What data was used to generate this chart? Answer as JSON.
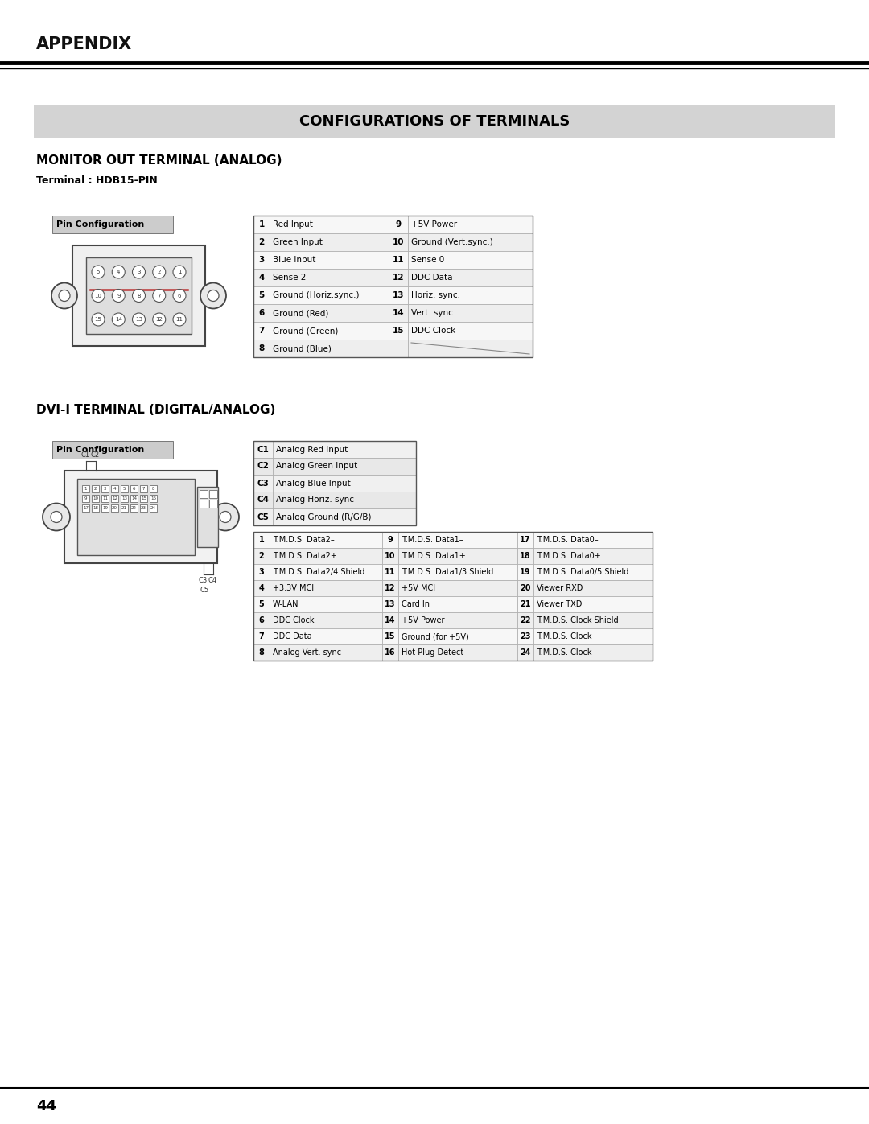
{
  "page_title": "APPENDIX",
  "section_title": "CONFIGURATIONS OF TERMINALS",
  "monitor_title": "MONITOR OUT TERMINAL (ANALOG)",
  "monitor_subtitle": "Terminal : HDB15-PIN",
  "dvi_title": "DVI-I TERMINAL (DIGITAL/ANALOG)",
  "pin_config_label": "Pin Configuration",
  "monitor_table_col1": [
    [
      "1",
      "Red Input"
    ],
    [
      "2",
      "Green Input"
    ],
    [
      "3",
      "Blue Input"
    ],
    [
      "4",
      "Sense 2"
    ],
    [
      "5",
      "Ground (Horiz.sync.)"
    ],
    [
      "6",
      "Ground (Red)"
    ],
    [
      "7",
      "Ground (Green)"
    ],
    [
      "8",
      "Ground (Blue)"
    ]
  ],
  "monitor_table_col2": [
    [
      "9",
      "+5V Power"
    ],
    [
      "10",
      "Ground (Vert.sync.)"
    ],
    [
      "11",
      "Sense 0"
    ],
    [
      "12",
      "DDC Data"
    ],
    [
      "13",
      "Horiz. sync."
    ],
    [
      "14",
      "Vert. sync."
    ],
    [
      "15",
      "DDC Clock"
    ],
    [
      "",
      ""
    ]
  ],
  "dvi_c_table": [
    [
      "C1",
      "Analog Red Input"
    ],
    [
      "C2",
      "Analog Green Input"
    ],
    [
      "C3",
      "Analog Blue Input"
    ],
    [
      "C4",
      "Analog Horiz. sync"
    ],
    [
      "C5",
      "Analog Ground (R/G/B)"
    ]
  ],
  "dvi_main_col1": [
    [
      "1",
      "T.M.D.S. Data2–"
    ],
    [
      "2",
      "T.M.D.S. Data2+"
    ],
    [
      "3",
      "T.M.D.S. Data2/4 Shield"
    ],
    [
      "4",
      "+3.3V MCI"
    ],
    [
      "5",
      "W-LAN"
    ],
    [
      "6",
      "DDC Clock"
    ],
    [
      "7",
      "DDC Data"
    ],
    [
      "8",
      "Analog Vert. sync"
    ]
  ],
  "dvi_main_col2": [
    [
      "9",
      "T.M.D.S. Data1–"
    ],
    [
      "10",
      "T.M.D.S. Data1+"
    ],
    [
      "11",
      "T.M.D.S. Data1/3 Shield"
    ],
    [
      "12",
      "+5V MCI"
    ],
    [
      "13",
      "Card In"
    ],
    [
      "14",
      "+5V Power"
    ],
    [
      "15",
      "Ground (for +5V)"
    ],
    [
      "16",
      "Hot Plug Detect"
    ]
  ],
  "dvi_main_col3": [
    [
      "17",
      "T.M.D.S. Data0–"
    ],
    [
      "18",
      "T.M.D.S. Data0+"
    ],
    [
      "19",
      "T.M.D.S. Data0/5 Shield"
    ],
    [
      "20",
      "Viewer RXD"
    ],
    [
      "21",
      "Viewer TXD"
    ],
    [
      "22",
      "T.M.D.S. Clock Shield"
    ],
    [
      "23",
      "T.M.D.S. Clock+"
    ],
    [
      "24",
      "T.M.D.S. Clock–"
    ]
  ],
  "page_number": "44"
}
